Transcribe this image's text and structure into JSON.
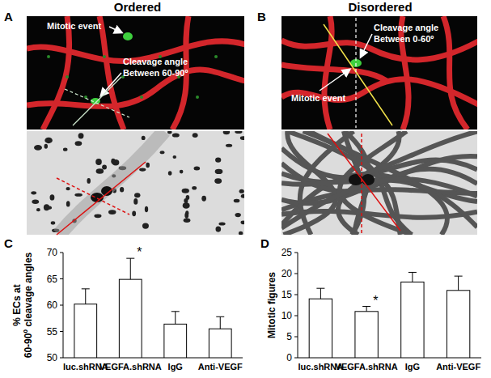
{
  "panels": [
    {
      "label": "A",
      "title": "Ordered",
      "notes": [
        [
          "Mitotic event"
        ],
        [
          "Cleavage angle",
          "Between 60-90º"
        ]
      ]
    },
    {
      "label": "B",
      "title": "Disordered",
      "notes": [
        [
          "Cleavage angle",
          "Between 0-60º"
        ],
        [
          "Mitotic event"
        ]
      ]
    }
  ],
  "chart_data": [
    {
      "type": "bar",
      "panel_label": "C",
      "y_label": "% ECs at 60-90º cleavage angles",
      "categories": [
        "luc.shRNA",
        "VEGFA.shRNA",
        "IgG",
        "Anti-VEGF"
      ],
      "values": [
        60.2,
        64.9,
        56.4,
        55.5
      ],
      "errors": [
        2.9,
        4.0,
        2.4,
        2.3
      ],
      "color": "#ffffff",
      "ylim": [
        50,
        70
      ],
      "yticks": [
        50,
        55,
        60,
        65,
        70
      ],
      "annotations": [
        {
          "text": "*",
          "index": 1
        }
      ]
    },
    {
      "type": "bar",
      "panel_label": "D",
      "y_label": "Mitotic figures",
      "categories": [
        "luc.shRNA",
        "VEGFA.shRNA",
        "IgG",
        "Anti-VEGF"
      ],
      "values": [
        14,
        11,
        18,
        16
      ],
      "errors": [
        2.5,
        1.2,
        2.3,
        3.4
      ],
      "color": "#ffffff",
      "ylim": [
        0,
        25
      ],
      "yticks": [
        0,
        5,
        10,
        15,
        20,
        25
      ],
      "annotations": [
        {
          "text": "*",
          "index": 1
        }
      ]
    }
  ]
}
